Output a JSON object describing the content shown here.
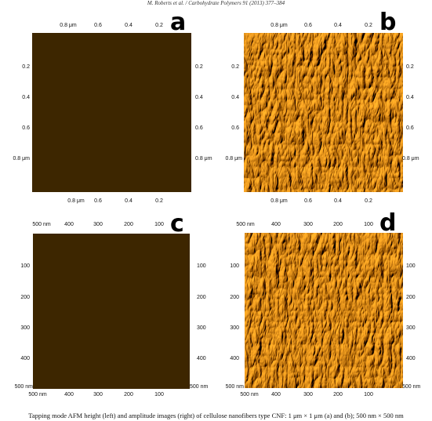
{
  "header": "M. Roberts et al. / Carbohydrate Polymers 91 (2013) 377–384",
  "caption": "Tapping mode AFM height (left) and amplitude images (right) of cellulose nanofibers type CNF: 1 μm × 1 μm (a) and (b); 500 nm × 500 nm",
  "panels": [
    {
      "letter": "a",
      "kind": "height",
      "top_ticks": [
        "0.8 μm",
        "0.6",
        "0.4",
        "0.2"
      ],
      "bottom_ticks": [
        "0.8 μm",
        "0.6",
        "0.4",
        "0.2"
      ],
      "left_ticks": [
        "0.2",
        "0.4",
        "0.6",
        "0.8 μm"
      ],
      "right_ticks": [
        "0.2",
        "0.4",
        "0.6",
        "0.8 μm"
      ]
    },
    {
      "letter": "b",
      "kind": "amplitude",
      "top_ticks": [
        "0.8 μm",
        "0.6",
        "0.4",
        "0.2"
      ],
      "bottom_ticks": [
        "0.8 μm",
        "0.6",
        "0.4",
        "0.2"
      ],
      "left_ticks": [
        "0.2",
        "0.4",
        "0.6",
        "0.8 μm"
      ],
      "right_ticks": [
        "0.2",
        "0.4",
        "0.6",
        "0.8 μm"
      ]
    },
    {
      "letter": "c",
      "kind": "height",
      "top_ticks": [
        "500 nm",
        "400",
        "300",
        "200",
        "100"
      ],
      "bottom_ticks": [
        "500 nm",
        "400",
        "300",
        "200",
        "100"
      ],
      "left_ticks": [
        "100",
        "200",
        "300",
        "400",
        "500 nm"
      ],
      "right_ticks": [
        "100",
        "200",
        "300",
        "400",
        "500 nm"
      ]
    },
    {
      "letter": "d",
      "kind": "amplitude",
      "top_ticks": [
        "500 nm",
        "400",
        "300",
        "200",
        "100"
      ],
      "bottom_ticks": [
        "500 nm",
        "400",
        "300",
        "200",
        "100"
      ],
      "left_ticks": [
        "100",
        "200",
        "300",
        "400",
        "500 nm"
      ],
      "right_ticks": [
        "100",
        "200",
        "300",
        "400",
        "500 nm"
      ]
    }
  ]
}
